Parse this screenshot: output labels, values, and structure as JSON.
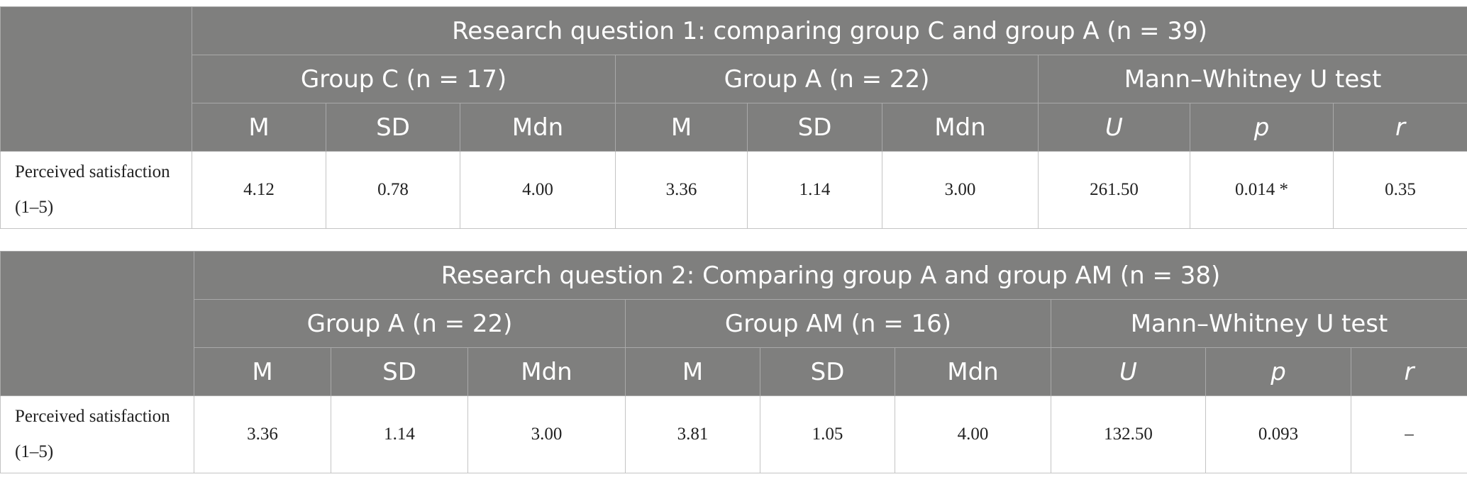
{
  "tables": [
    {
      "title": "Research question 1: comparing group C and group A (n = 39)",
      "groups": [
        "Group C (n = 17)",
        "Group A (n = 22)",
        "Mann–Whitney U test"
      ],
      "columns": [
        "M",
        "SD",
        "Mdn",
        "M",
        "SD",
        "Mdn",
        "U",
        "p",
        "r"
      ],
      "row": {
        "label": "Perceived satisfaction (1–5)",
        "values": [
          "4.12",
          "0.78",
          "4.00",
          "3.36",
          "1.14",
          "3.00",
          "261.50",
          "0.014 *",
          "0.35"
        ]
      }
    },
    {
      "title": "Research question 2: Comparing group A and group AM (n = 38)",
      "groups": [
        "Group A (n = 22)",
        "Group AM (n = 16)",
        "Mann–Whitney U test"
      ],
      "columns": [
        "M",
        "SD",
        "Mdn",
        "M",
        "SD",
        "Mdn",
        "U",
        "p",
        "r"
      ],
      "row": {
        "label": "Perceived satisfaction (1–5)",
        "values": [
          "3.36",
          "1.14",
          "3.00",
          "3.81",
          "1.05",
          "4.00",
          "132.50",
          "0.093",
          "–"
        ]
      }
    }
  ]
}
